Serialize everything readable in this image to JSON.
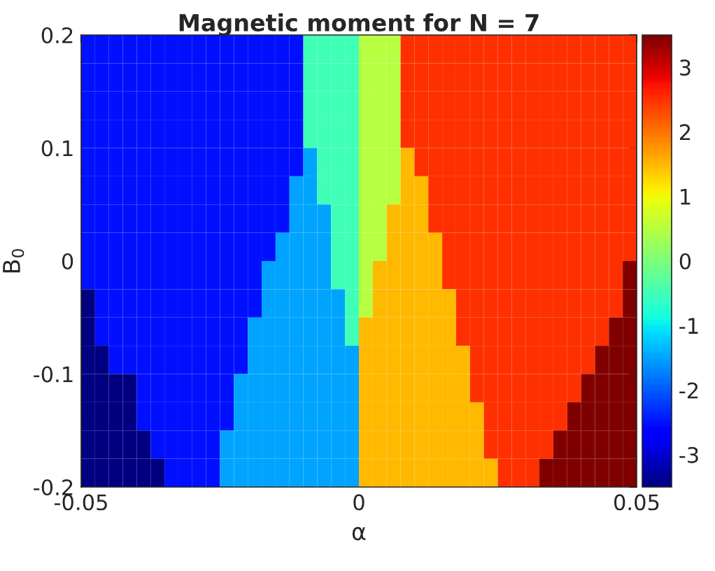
{
  "chart_data": {
    "type": "heatmap",
    "title": "Magnetic moment for N = 7",
    "xlabel": "α",
    "ylabel": "B$_{0}$",
    "xlim": [
      -0.05,
      0.05
    ],
    "xticks": [
      -0.05,
      0,
      0.05
    ],
    "ylim": [
      -0.2,
      0.2
    ],
    "yticks": [
      -0.2,
      -0.1,
      0,
      0.1,
      0.2
    ],
    "clim": [
      -3.5,
      3.5
    ],
    "cticks": [
      -3,
      -2,
      -1,
      0,
      1,
      2,
      3
    ],
    "x": [
      -0.04875,
      -0.04625,
      -0.04375,
      -0.04125,
      -0.03875,
      -0.03625,
      -0.03375,
      -0.03125,
      -0.02875,
      -0.02625,
      -0.02375,
      -0.02125,
      -0.01875,
      -0.01625,
      -0.01375,
      -0.01125,
      -0.00875,
      -0.00625,
      -0.00375,
      -0.00125,
      0.00125,
      0.00375,
      0.00625,
      0.00875,
      0.01125,
      0.01375,
      0.01625,
      0.01875,
      0.02125,
      0.02375,
      0.02625,
      0.02875,
      0.03125,
      0.03375,
      0.03625,
      0.03875,
      0.04125,
      0.04375,
      0.04625,
      0.04875
    ],
    "y": [
      0.1875,
      0.1625,
      0.1375,
      0.1125,
      0.0875,
      0.0625,
      0.0375,
      0.0125,
      -0.0125,
      -0.0375,
      -0.0625,
      -0.0875,
      -0.1125,
      -0.1375,
      -0.1625,
      -0.1875
    ],
    "cells": [
      [
        -2.5,
        -2.5,
        -2.5,
        -2.5,
        -2.5,
        -2.5,
        -2.5,
        -2.5,
        -2.5,
        -2.5,
        -2.5,
        -2.5,
        -2.5,
        -2.5,
        -2.5,
        -2.5,
        -0.5,
        -0.5,
        -0.5,
        -0.5,
        0.5,
        0.5,
        0.5,
        2.5,
        2.5,
        2.5,
        2.5,
        2.5,
        2.5,
        2.5,
        2.5,
        2.5,
        2.5,
        2.5,
        2.5,
        2.5,
        2.5,
        2.5,
        2.5,
        2.5
      ],
      [
        -2.5,
        -2.5,
        -2.5,
        -2.5,
        -2.5,
        -2.5,
        -2.5,
        -2.5,
        -2.5,
        -2.5,
        -2.5,
        -2.5,
        -2.5,
        -2.5,
        -2.5,
        -2.5,
        -0.5,
        -0.5,
        -0.5,
        -0.5,
        0.5,
        0.5,
        0.5,
        2.5,
        2.5,
        2.5,
        2.5,
        2.5,
        2.5,
        2.5,
        2.5,
        2.5,
        2.5,
        2.5,
        2.5,
        2.5,
        2.5,
        2.5,
        2.5,
        2.5
      ],
      [
        -2.5,
        -2.5,
        -2.5,
        -2.5,
        -2.5,
        -2.5,
        -2.5,
        -2.5,
        -2.5,
        -2.5,
        -2.5,
        -2.5,
        -2.5,
        -2.5,
        -2.5,
        -2.5,
        -0.5,
        -0.5,
        -0.5,
        -0.5,
        0.5,
        0.5,
        0.5,
        2.5,
        2.5,
        2.5,
        2.5,
        2.5,
        2.5,
        2.5,
        2.5,
        2.5,
        2.5,
        2.5,
        2.5,
        2.5,
        2.5,
        2.5,
        2.5,
        2.5
      ],
      [
        -2.5,
        -2.5,
        -2.5,
        -2.5,
        -2.5,
        -2.5,
        -2.5,
        -2.5,
        -2.5,
        -2.5,
        -2.5,
        -2.5,
        -2.5,
        -2.5,
        -2.5,
        -2.5,
        -0.5,
        -0.5,
        -0.5,
        -0.5,
        0.5,
        0.5,
        0.5,
        2.5,
        2.5,
        2.5,
        2.5,
        2.5,
        2.5,
        2.5,
        2.5,
        2.5,
        2.5,
        2.5,
        2.5,
        2.5,
        2.5,
        2.5,
        2.5,
        2.5
      ],
      [
        -2.5,
        -2.5,
        -2.5,
        -2.5,
        -2.5,
        -2.5,
        -2.5,
        -2.5,
        -2.5,
        -2.5,
        -2.5,
        -2.5,
        -2.5,
        -2.5,
        -2.5,
        -2.5,
        -1.5,
        -0.5,
        -0.5,
        -0.5,
        0.5,
        0.5,
        0.5,
        1.5,
        2.5,
        2.5,
        2.5,
        2.5,
        2.5,
        2.5,
        2.5,
        2.5,
        2.5,
        2.5,
        2.5,
        2.5,
        2.5,
        2.5,
        2.5,
        2.5
      ],
      [
        -2.5,
        -2.5,
        -2.5,
        -2.5,
        -2.5,
        -2.5,
        -2.5,
        -2.5,
        -2.5,
        -2.5,
        -2.5,
        -2.5,
        -2.5,
        -2.5,
        -2.5,
        -1.5,
        -1.5,
        -0.5,
        -0.5,
        -0.5,
        0.5,
        0.5,
        0.5,
        1.5,
        1.5,
        2.5,
        2.5,
        2.5,
        2.5,
        2.5,
        2.5,
        2.5,
        2.5,
        2.5,
        2.5,
        2.5,
        2.5,
        2.5,
        2.5,
        2.5
      ],
      [
        -2.5,
        -2.5,
        -2.5,
        -2.5,
        -2.5,
        -2.5,
        -2.5,
        -2.5,
        -2.5,
        -2.5,
        -2.5,
        -2.5,
        -2.5,
        -2.5,
        -2.5,
        -1.5,
        -1.5,
        -1.5,
        -0.5,
        -0.5,
        0.5,
        0.5,
        1.5,
        1.5,
        1.5,
        2.5,
        2.5,
        2.5,
        2.5,
        2.5,
        2.5,
        2.5,
        2.5,
        2.5,
        2.5,
        2.5,
        2.5,
        2.5,
        2.5,
        2.5
      ],
      [
        -2.5,
        -2.5,
        -2.5,
        -2.5,
        -2.5,
        -2.5,
        -2.5,
        -2.5,
        -2.5,
        -2.5,
        -2.5,
        -2.5,
        -2.5,
        -2.5,
        -1.5,
        -1.5,
        -1.5,
        -1.5,
        -0.5,
        -0.5,
        0.5,
        0.5,
        1.5,
        1.5,
        1.5,
        1.5,
        2.5,
        2.5,
        2.5,
        2.5,
        2.5,
        2.5,
        2.5,
        2.5,
        2.5,
        2.5,
        2.5,
        2.5,
        2.5,
        2.5
      ],
      [
        -2.5,
        -2.5,
        -2.5,
        -2.5,
        -2.5,
        -2.5,
        -2.5,
        -2.5,
        -2.5,
        -2.5,
        -2.5,
        -2.5,
        -2.5,
        -1.5,
        -1.5,
        -1.5,
        -1.5,
        -1.5,
        -0.5,
        -0.5,
        0.5,
        1.5,
        1.5,
        1.5,
        1.5,
        1.5,
        2.5,
        2.5,
        2.5,
        2.5,
        2.5,
        2.5,
        2.5,
        2.5,
        2.5,
        2.5,
        2.5,
        2.5,
        2.5,
        3.5
      ],
      [
        -3.5,
        -2.5,
        -2.5,
        -2.5,
        -2.5,
        -2.5,
        -2.5,
        -2.5,
        -2.5,
        -2.5,
        -2.5,
        -2.5,
        -2.5,
        -1.5,
        -1.5,
        -1.5,
        -1.5,
        -1.5,
        -1.5,
        -0.5,
        0.5,
        1.5,
        1.5,
        1.5,
        1.5,
        1.5,
        1.5,
        2.5,
        2.5,
        2.5,
        2.5,
        2.5,
        2.5,
        2.5,
        2.5,
        2.5,
        2.5,
        2.5,
        2.5,
        3.5
      ],
      [
        -3.5,
        -2.5,
        -2.5,
        -2.5,
        -2.5,
        -2.5,
        -2.5,
        -2.5,
        -2.5,
        -2.5,
        -2.5,
        -2.5,
        -1.5,
        -1.5,
        -1.5,
        -1.5,
        -1.5,
        -1.5,
        -1.5,
        -0.5,
        1.5,
        1.5,
        1.5,
        1.5,
        1.5,
        1.5,
        1.5,
        2.5,
        2.5,
        2.5,
        2.5,
        2.5,
        2.5,
        2.5,
        2.5,
        2.5,
        2.5,
        2.5,
        3.5,
        3.5
      ],
      [
        -3.5,
        -3.5,
        -2.5,
        -2.5,
        -2.5,
        -2.5,
        -2.5,
        -2.5,
        -2.5,
        -2.5,
        -2.5,
        -2.5,
        -1.5,
        -1.5,
        -1.5,
        -1.5,
        -1.5,
        -1.5,
        -1.5,
        -1.5,
        1.5,
        1.5,
        1.5,
        1.5,
        1.5,
        1.5,
        1.5,
        1.5,
        2.5,
        2.5,
        2.5,
        2.5,
        2.5,
        2.5,
        2.5,
        2.5,
        2.5,
        3.5,
        3.5,
        3.5
      ],
      [
        -3.5,
        -3.5,
        -3.5,
        -3.5,
        -2.5,
        -2.5,
        -2.5,
        -2.5,
        -2.5,
        -2.5,
        -2.5,
        -1.5,
        -1.5,
        -1.5,
        -1.5,
        -1.5,
        -1.5,
        -1.5,
        -1.5,
        -1.5,
        1.5,
        1.5,
        1.5,
        1.5,
        1.5,
        1.5,
        1.5,
        1.5,
        2.5,
        2.5,
        2.5,
        2.5,
        2.5,
        2.5,
        2.5,
        2.5,
        3.5,
        3.5,
        3.5,
        3.5
      ],
      [
        -3.5,
        -3.5,
        -3.5,
        -3.5,
        -2.5,
        -2.5,
        -2.5,
        -2.5,
        -2.5,
        -2.5,
        -2.5,
        -1.5,
        -1.5,
        -1.5,
        -1.5,
        -1.5,
        -1.5,
        -1.5,
        -1.5,
        -1.5,
        1.5,
        1.5,
        1.5,
        1.5,
        1.5,
        1.5,
        1.5,
        1.5,
        1.5,
        2.5,
        2.5,
        2.5,
        2.5,
        2.5,
        2.5,
        3.5,
        3.5,
        3.5,
        3.5,
        3.5
      ],
      [
        -3.5,
        -3.5,
        -3.5,
        -3.5,
        -3.5,
        -2.5,
        -2.5,
        -2.5,
        -2.5,
        -2.5,
        -1.5,
        -1.5,
        -1.5,
        -1.5,
        -1.5,
        -1.5,
        -1.5,
        -1.5,
        -1.5,
        -1.5,
        1.5,
        1.5,
        1.5,
        1.5,
        1.5,
        1.5,
        1.5,
        1.5,
        1.5,
        2.5,
        2.5,
        2.5,
        2.5,
        2.5,
        3.5,
        3.5,
        3.5,
        3.5,
        3.5,
        3.5
      ],
      [
        -3.5,
        -3.5,
        -3.5,
        -3.5,
        -3.5,
        -3.5,
        -2.5,
        -2.5,
        -2.5,
        -2.5,
        -1.5,
        -1.5,
        -1.5,
        -1.5,
        -1.5,
        -1.5,
        -1.5,
        -1.5,
        -1.5,
        -1.5,
        1.5,
        1.5,
        1.5,
        1.5,
        1.5,
        1.5,
        1.5,
        1.5,
        1.5,
        1.5,
        2.5,
        2.5,
        2.5,
        3.5,
        3.5,
        3.5,
        3.5,
        3.5,
        3.5,
        3.5
      ]
    ]
  }
}
